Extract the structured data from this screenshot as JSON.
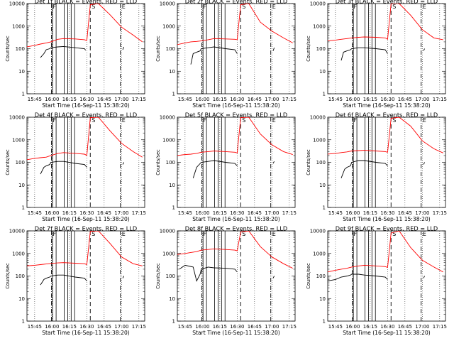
{
  "window": {
    "title": ""
  },
  "figure": {
    "style": {
      "background": "#ffffff",
      "axis_color": "#000000",
      "events_color": "#000000",
      "lld_color": "#ff0000",
      "grid": true,
      "y_scale": "log"
    },
    "common": {
      "xlabel": "Start Time (16-Sep-11 15:38:20)",
      "ylabel": "Counts/sec",
      "x_tick_labels": [
        "15:45",
        "16:00",
        "16:15",
        "16:30",
        "16:45",
        "17:00",
        "17:15"
      ],
      "y_tick_labels": [
        "1",
        "10",
        "100",
        "1000",
        "10000"
      ],
      "markers": [
        {
          "label": "F",
          "time": "15:59:30",
          "style": "dash-dot"
        },
        {
          "label": "S",
          "time": "16:33:00",
          "style": "dashed"
        },
        {
          "label": "E",
          "time": "16:59:00",
          "style": "dash-dot"
        }
      ],
      "gaps": [
        [
          "16:00:30",
          "16:03:30"
        ],
        [
          "16:10:30",
          "16:13:30"
        ],
        [
          "16:16:30",
          "16:19:30"
        ]
      ]
    }
  },
  "chart_data": [
    {
      "type": "line",
      "title": "Det 1f BLACK = Events, RED = LLD",
      "xlabel": "Start Time (16-Sep-11 15:38:20)",
      "ylabel": "Counts/sec",
      "x_range": [
        "15:38:20",
        "17:20:00"
      ],
      "ylim": [
        1,
        10000
      ],
      "y_scale": "log",
      "series": [
        {
          "name": "Events",
          "color": "#000000",
          "x": [
            "15:50",
            "15:53",
            "15:55",
            "15:58",
            "15:59",
            "16:05",
            "16:10",
            "16:20",
            "16:28",
            "16:29",
            "16:33",
            "17:01",
            "17:02"
          ],
          "y": [
            40,
            60,
            90,
            100,
            110,
            120,
            125,
            110,
            100,
            85,
            0,
            90,
            120
          ]
        },
        {
          "name": "LLD",
          "color": "#ff0000",
          "x": [
            "15:38",
            "15:45",
            "15:50",
            "15:55",
            "15:59",
            "16:05",
            "16:10",
            "16:20",
            "16:28",
            "16:30",
            "16:33",
            "16:40",
            "16:50",
            "17:00",
            "17:10",
            "17:18"
          ],
          "y": [
            120,
            140,
            160,
            180,
            200,
            260,
            280,
            270,
            250,
            230,
            9000,
            11000,
            3200,
            900,
            400,
            200
          ]
        }
      ]
    },
    {
      "type": "line",
      "title": "Det 2f BLACK = Events, RED = LLD",
      "xlabel": "Start Time (16-Sep-11 15:38:20)",
      "ylabel": "Counts/sec",
      "x_range": [
        "15:38:20",
        "17:20:00"
      ],
      "ylim": [
        1,
        10000
      ],
      "y_scale": "log",
      "series": [
        {
          "name": "Events",
          "color": "#000000",
          "x": [
            "15:50",
            "15:52",
            "15:55",
            "15:58",
            "15:59",
            "16:05",
            "16:10",
            "16:20",
            "16:28",
            "16:30",
            "16:33",
            "17:01",
            "17:02"
          ],
          "y": [
            20,
            60,
            70,
            80,
            100,
            110,
            120,
            100,
            90,
            60,
            0,
            80,
            110
          ]
        },
        {
          "name": "LLD",
          "color": "#ff0000",
          "x": [
            "15:38",
            "15:45",
            "15:50",
            "15:55",
            "15:59",
            "16:05",
            "16:10",
            "16:20",
            "16:28",
            "16:30",
            "16:33",
            "16:40",
            "16:50",
            "17:00",
            "17:10",
            "17:18"
          ],
          "y": [
            150,
            180,
            200,
            210,
            220,
            250,
            280,
            270,
            260,
            250,
            9000,
            12000,
            1500,
            600,
            300,
            180
          ]
        }
      ]
    },
    {
      "type": "line",
      "title": "Det 3f BLACK = Events, RED = LLD",
      "xlabel": "Start Time (16-Sep-11 15:38:20)",
      "ylabel": "Counts/sec",
      "x_range": [
        "15:38:20",
        "17:20:00"
      ],
      "ylim": [
        1,
        10000
      ],
      "y_scale": "log",
      "series": [
        {
          "name": "Events",
          "color": "#000000",
          "x": [
            "15:50",
            "15:52",
            "15:55",
            "15:58",
            "15:59",
            "16:05",
            "16:10",
            "16:20",
            "16:28",
            "16:30",
            "16:33",
            "17:01",
            "17:02"
          ],
          "y": [
            30,
            70,
            80,
            90,
            100,
            110,
            110,
            100,
            90,
            60,
            0,
            80,
            100
          ]
        },
        {
          "name": "LLD",
          "color": "#ff0000",
          "x": [
            "15:38",
            "15:45",
            "15:50",
            "15:55",
            "15:59",
            "16:05",
            "16:10",
            "16:20",
            "16:28",
            "16:30",
            "16:33",
            "16:40",
            "16:50",
            "17:00",
            "17:10",
            "17:18"
          ],
          "y": [
            220,
            240,
            260,
            280,
            300,
            320,
            330,
            320,
            300,
            260,
            10000,
            12000,
            3000,
            700,
            300,
            250
          ]
        }
      ]
    },
    {
      "type": "line",
      "title": "Det 4f BLACK = Events, RED = LLD",
      "xlabel": "Start Time (16-Sep-11 15:38:20)",
      "ylabel": "Counts/sec",
      "x_range": [
        "15:38:20",
        "17:20:00"
      ],
      "ylim": [
        1,
        10000
      ],
      "y_scale": "log",
      "series": [
        {
          "name": "Events",
          "color": "#000000",
          "x": [
            "15:50",
            "15:53",
            "15:55",
            "15:58",
            "15:59",
            "16:05",
            "16:10",
            "16:20",
            "16:28",
            "16:30",
            "16:33",
            "17:01",
            "17:02"
          ],
          "y": [
            30,
            60,
            70,
            80,
            100,
            110,
            110,
            90,
            80,
            60,
            0,
            80,
            100
          ]
        },
        {
          "name": "LLD",
          "color": "#ff0000",
          "x": [
            "15:38",
            "15:45",
            "15:50",
            "15:55",
            "15:59",
            "16:05",
            "16:10",
            "16:20",
            "16:28",
            "16:30",
            "16:33",
            "16:40",
            "16:50",
            "17:00",
            "17:10",
            "17:18"
          ],
          "y": [
            130,
            150,
            160,
            170,
            200,
            250,
            270,
            250,
            230,
            200,
            9500,
            11000,
            2500,
            700,
            300,
            170
          ]
        }
      ]
    },
    {
      "type": "line",
      "title": "Det 5f BLACK = Events, RED = LLD",
      "xlabel": "Start Time (16-Sep-11 15:38:20)",
      "ylabel": "Counts/sec",
      "x_range": [
        "15:38:20",
        "17:20:00"
      ],
      "ylim": [
        1,
        10000
      ],
      "y_scale": "log",
      "series": [
        {
          "name": "Events",
          "color": "#000000",
          "x": [
            "15:52",
            "15:55",
            "15:59",
            "16:05",
            "16:10",
            "16:20",
            "16:28",
            "16:30",
            "16:33",
            "17:01",
            "17:02"
          ],
          "y": [
            20,
            60,
            100,
            110,
            120,
            100,
            90,
            70,
            0,
            90,
            110
          ]
        },
        {
          "name": "LLD",
          "color": "#ff0000",
          "x": [
            "15:38",
            "15:45",
            "15:50",
            "15:55",
            "15:59",
            "16:05",
            "16:10",
            "16:20",
            "16:28",
            "16:30",
            "16:33",
            "16:40",
            "16:50",
            "17:00",
            "17:10",
            "17:18"
          ],
          "y": [
            200,
            220,
            230,
            250,
            280,
            300,
            320,
            300,
            280,
            260,
            9500,
            11000,
            1800,
            600,
            300,
            220
          ]
        }
      ]
    },
    {
      "type": "line",
      "title": "Det 6f BLACK = Events, RED = LLD",
      "xlabel": "Start Time (16-Sep-11 15:38:20)",
      "ylabel": "Counts/sec",
      "x_range": [
        "15:38:20",
        "17:20:00"
      ],
      "ylim": [
        1,
        10000
      ],
      "y_scale": "log",
      "series": [
        {
          "name": "Events",
          "color": "#000000",
          "x": [
            "15:50",
            "15:53",
            "15:55",
            "15:58",
            "15:59",
            "16:05",
            "16:10",
            "16:20",
            "16:28",
            "16:30",
            "16:33",
            "17:01",
            "17:02"
          ],
          "y": [
            20,
            50,
            60,
            70,
            100,
            120,
            120,
            100,
            90,
            70,
            0,
            80,
            100
          ]
        },
        {
          "name": "LLD",
          "color": "#ff0000",
          "x": [
            "15:38",
            "15:45",
            "15:50",
            "15:55",
            "15:59",
            "16:05",
            "16:10",
            "16:20",
            "16:28",
            "16:30",
            "16:33",
            "16:40",
            "16:50",
            "17:00",
            "17:10",
            "17:18"
          ],
          "y": [
            230,
            250,
            270,
            290,
            320,
            330,
            340,
            320,
            300,
            280,
            9000,
            12000,
            4000,
            900,
            400,
            260
          ]
        }
      ]
    },
    {
      "type": "line",
      "title": "Det 7f BLACK = Events, RED = LLD",
      "xlabel": "Start Time (16-Sep-11 15:38:20)",
      "ylabel": "Counts/sec",
      "x_range": [
        "15:38:20",
        "17:20:00"
      ],
      "ylim": [
        1,
        10000
      ],
      "y_scale": "log",
      "series": [
        {
          "name": "Events",
          "color": "#000000",
          "x": [
            "15:50",
            "15:53",
            "15:55",
            "15:58",
            "15:59",
            "16:05",
            "16:10",
            "16:20",
            "16:28",
            "16:30",
            "16:33",
            "17:01",
            "17:02"
          ],
          "y": [
            40,
            70,
            80,
            90,
            100,
            110,
            110,
            90,
            80,
            60,
            0,
            80,
            100
          ]
        },
        {
          "name": "LLD",
          "color": "#ff0000",
          "x": [
            "15:38",
            "15:45",
            "15:50",
            "15:55",
            "15:59",
            "16:05",
            "16:10",
            "16:20",
            "16:28",
            "16:30",
            "16:33",
            "16:40",
            "16:50",
            "17:00",
            "17:10",
            "17:18"
          ],
          "y": [
            280,
            300,
            320,
            340,
            360,
            380,
            390,
            370,
            350,
            320,
            9500,
            12000,
            2800,
            700,
            350,
            280
          ]
        }
      ]
    },
    {
      "type": "line",
      "title": "Det 8f BLACK = Events, RED = LLD",
      "xlabel": "Start Time (16-Sep-11 15:38:20)",
      "ylabel": "Counts/sec",
      "x_range": [
        "15:38:20",
        "17:20:00"
      ],
      "ylim": [
        1,
        10000
      ],
      "y_scale": "log",
      "series": [
        {
          "name": "Events",
          "color": "#000000",
          "x": [
            "15:40",
            "15:45",
            "15:52",
            "15:55",
            "15:58",
            "15:59",
            "16:05",
            "16:10",
            "16:20",
            "16:28",
            "16:30",
            "16:33",
            "17:01",
            "17:02"
          ],
          "y": [
            200,
            300,
            250,
            60,
            120,
            200,
            250,
            230,
            220,
            200,
            150,
            0,
            80,
            100
          ]
        },
        {
          "name": "LLD",
          "color": "#ff0000",
          "x": [
            "15:38",
            "15:45",
            "15:50",
            "15:55",
            "15:59",
            "16:05",
            "16:10",
            "16:20",
            "16:28",
            "16:30",
            "16:33",
            "16:40",
            "16:50",
            "17:00",
            "17:10",
            "17:18"
          ],
          "y": [
            900,
            1000,
            1100,
            1200,
            1400,
            1500,
            1600,
            1500,
            1400,
            1300,
            9000,
            11000,
            2000,
            700,
            350,
            220
          ]
        }
      ]
    },
    {
      "type": "line",
      "title": "Det 9f BLACK = Events, RED = LLD",
      "xlabel": "Start Time (16-Sep-11 15:38:20)",
      "ylabel": "Counts/sec",
      "x_range": [
        "15:38:20",
        "17:20:00"
      ],
      "ylim": [
        1,
        10000
      ],
      "y_scale": "log",
      "series": [
        {
          "name": "Events",
          "color": "#000000",
          "x": [
            "15:38",
            "15:45",
            "15:50",
            "15:55",
            "15:58",
            "15:59",
            "16:05",
            "16:10",
            "16:20",
            "16:28",
            "16:30",
            "16:33",
            "17:01",
            "17:02"
          ],
          "y": [
            60,
            70,
            90,
            100,
            110,
            120,
            120,
            110,
            100,
            90,
            70,
            0,
            80,
            100
          ]
        },
        {
          "name": "LLD",
          "color": "#ff0000",
          "x": [
            "15:38",
            "15:45",
            "15:50",
            "15:55",
            "15:59",
            "16:05",
            "16:10",
            "16:20",
            "16:28",
            "16:30",
            "16:33",
            "16:40",
            "16:50",
            "17:00",
            "17:10",
            "17:18"
          ],
          "y": [
            150,
            180,
            200,
            220,
            250,
            280,
            300,
            280,
            260,
            240,
            8000,
            10000,
            1800,
            500,
            250,
            150
          ]
        }
      ]
    }
  ]
}
